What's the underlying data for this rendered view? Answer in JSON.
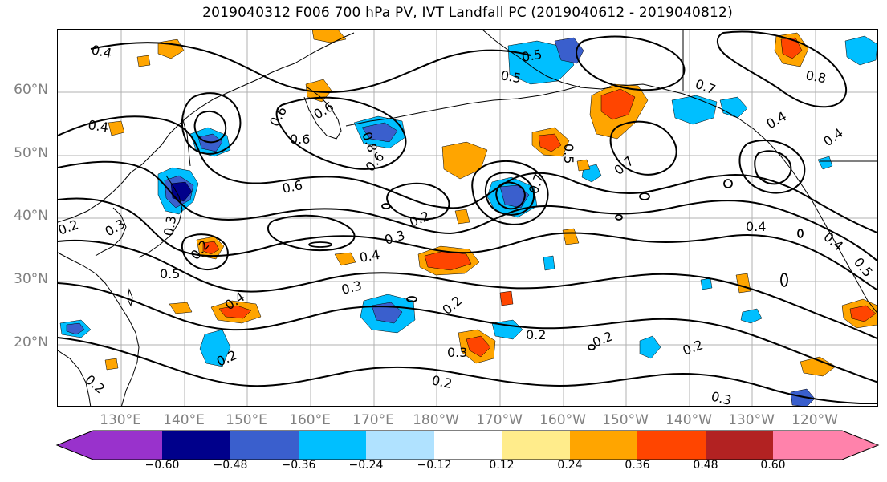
{
  "title": "2019040312 F006 700 hPa PV, IVT Landfall PC (2019040612 - 2019040812)",
  "map": {
    "lat_labels": [
      "60°N",
      "50°N",
      "40°N",
      "30°N",
      "20°N"
    ],
    "lon_labels": [
      "130°E",
      "140°E",
      "150°E",
      "160°E",
      "170°E",
      "180°W",
      "170°W",
      "160°W",
      "150°W",
      "140°W",
      "130°W",
      "120°W"
    ],
    "contour_labels": [
      "0.4",
      "0.4",
      "0.6",
      "0.6",
      "0.6",
      "0.8",
      "0.6",
      "0.6",
      "0.3",
      "0.3",
      "0.2",
      "0.2",
      "0.3",
      "0.4",
      "0.5",
      "0.4",
      "0.3",
      "0.2",
      "0.2",
      "0.2",
      "0.2",
      "0.2",
      "0.2",
      "0.3",
      "0.2",
      "0.2",
      "0.4",
      "0.4",
      "0.5",
      "0.8",
      "0.7",
      "0.5",
      "0.5",
      "0.7",
      "0.4",
      "0.4",
      "0.7",
      "0.5",
      "0.3"
    ],
    "coastline_color": "#000000",
    "contour_color": "#000000",
    "grid_color": "#b0b0b0"
  },
  "colorbar": {
    "colors": [
      "#9932cc",
      "#00008b",
      "#3a5fcd",
      "#00bfff",
      "#b0e2ff",
      "#ffffff",
      "#ffec8b",
      "#ffa500",
      "#ff4500",
      "#b22222",
      "#ff82ab"
    ],
    "tick_labels": [
      "−0.60",
      "−0.48",
      "−0.36",
      "−0.24",
      "−0.12",
      "0.12",
      "0.24",
      "0.36",
      "0.48",
      "0.60"
    ],
    "tick_values": [
      -0.6,
      -0.48,
      -0.36,
      -0.24,
      -0.12,
      0.12,
      0.24,
      0.36,
      0.48,
      0.6
    ]
  }
}
